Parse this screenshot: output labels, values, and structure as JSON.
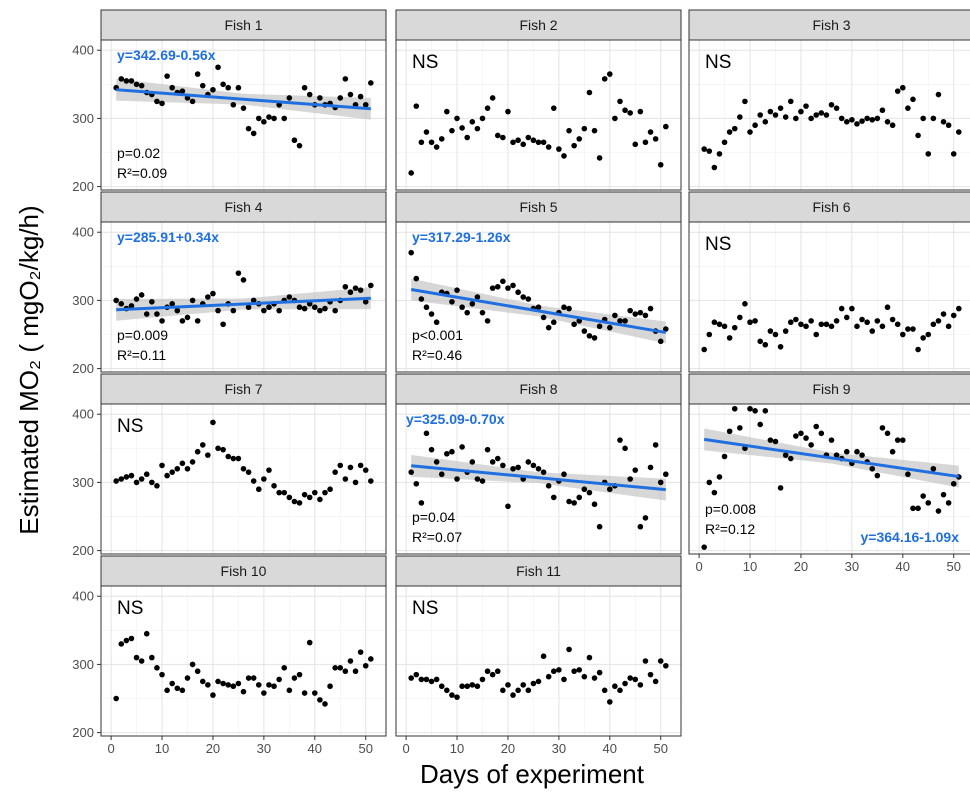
{
  "chart_data": {
    "type": "scatter",
    "xlabel": "Days of experiment",
    "ylabel": "Estimated MO₂ ( mgO₂/kg/h)",
    "xlim": [
      -1,
      53
    ],
    "ylim": [
      195,
      415
    ],
    "xticks": [
      0,
      10,
      20,
      30,
      40,
      50
    ],
    "yticks": [
      200,
      300,
      400
    ],
    "grid": true,
    "line_color": "#1f6fe0",
    "point_color": "#000000",
    "panels": [
      {
        "name": "Fish 1",
        "x": [
          1,
          2,
          3,
          4,
          5,
          6,
          7,
          8,
          9,
          10,
          11,
          12,
          13,
          14,
          15,
          16,
          17,
          18,
          19,
          20,
          21,
          22,
          23,
          24,
          25,
          26,
          27,
          28,
          29,
          30,
          31,
          32,
          33,
          34,
          35,
          36,
          37,
          38,
          39,
          40,
          41,
          42,
          43,
          44,
          45,
          46,
          47,
          48,
          49,
          50,
          51
        ],
        "y": [
          345,
          358,
          355,
          355,
          350,
          348,
          338,
          335,
          325,
          322,
          362,
          345,
          338,
          340,
          330,
          325,
          365,
          348,
          335,
          342,
          375,
          350,
          345,
          320,
          345,
          315,
          285,
          278,
          300,
          295,
          302,
          300,
          320,
          300,
          330,
          268,
          260,
          345,
          335,
          320,
          330,
          320,
          322,
          316,
          330,
          358,
          335,
          320,
          332,
          320,
          352
        ],
        "fit": {
          "intercept": 342.69,
          "slope": -0.56
        },
        "equation": "y=342.69-0.56x",
        "p": "p=0.02",
        "r2": "R²=0.09"
      },
      {
        "name": "Fish 2",
        "x": [
          1,
          2,
          3,
          4,
          5,
          6,
          7,
          8,
          9,
          10,
          11,
          12,
          13,
          14,
          15,
          16,
          17,
          18,
          19,
          20,
          21,
          22,
          23,
          24,
          25,
          26,
          27,
          28,
          29,
          30,
          31,
          32,
          33,
          34,
          35,
          36,
          37,
          38,
          39,
          40,
          41,
          42,
          43,
          44,
          45,
          46,
          47,
          48,
          49,
          50,
          51
        ],
        "y": [
          220,
          318,
          265,
          280,
          265,
          258,
          270,
          310,
          282,
          300,
          286,
          272,
          295,
          285,
          300,
          315,
          330,
          275,
          272,
          310,
          265,
          268,
          262,
          272,
          268,
          265,
          265,
          258,
          315,
          255,
          245,
          282,
          260,
          270,
          285,
          338,
          282,
          242,
          358,
          365,
          300,
          325,
          312,
          308,
          262,
          310,
          265,
          280,
          270,
          232,
          288
        ],
        "ns": "NS"
      },
      {
        "name": "Fish 3",
        "x": [
          1,
          2,
          3,
          4,
          5,
          6,
          7,
          8,
          9,
          10,
          11,
          12,
          13,
          14,
          15,
          16,
          17,
          18,
          19,
          20,
          21,
          22,
          23,
          24,
          25,
          26,
          27,
          28,
          29,
          30,
          31,
          32,
          33,
          34,
          35,
          36,
          37,
          38,
          39,
          40,
          41,
          42,
          43,
          44,
          45,
          46,
          47,
          48,
          49,
          50,
          51
        ],
        "y": [
          255,
          252,
          228,
          248,
          265,
          280,
          285,
          302,
          325,
          280,
          290,
          305,
          295,
          310,
          305,
          315,
          302,
          325,
          300,
          310,
          318,
          300,
          305,
          308,
          305,
          320,
          315,
          300,
          295,
          298,
          292,
          296,
          300,
          298,
          300,
          312,
          295,
          290,
          340,
          345,
          315,
          328,
          275,
          300,
          248,
          300,
          335,
          295,
          290,
          248,
          280
        ],
        "ns": "NS"
      },
      {
        "name": "Fish 4",
        "x": [
          1,
          2,
          3,
          4,
          5,
          6,
          7,
          8,
          9,
          10,
          11,
          12,
          13,
          14,
          15,
          16,
          17,
          18,
          19,
          20,
          21,
          22,
          23,
          24,
          25,
          26,
          27,
          28,
          29,
          30,
          31,
          32,
          33,
          34,
          35,
          36,
          37,
          38,
          39,
          40,
          41,
          42,
          43,
          44,
          45,
          46,
          47,
          48,
          49,
          50,
          51
        ],
        "y": [
          300,
          295,
          288,
          292,
          302,
          308,
          280,
          298,
          280,
          270,
          290,
          295,
          285,
          270,
          275,
          300,
          270,
          295,
          305,
          310,
          285,
          265,
          295,
          285,
          340,
          330,
          290,
          300,
          295,
          285,
          290,
          295,
          285,
          300,
          305,
          300,
          290,
          288,
          295,
          290,
          285,
          288,
          298,
          285,
          300,
          320,
          312,
          318,
          315,
          298,
          322
        ],
        "fit": {
          "intercept": 285.91,
          "slope": 0.34
        },
        "equation": "y=285.91+0.34x",
        "p": "p=0.009",
        "r2": "R²=0.11"
      },
      {
        "name": "Fish 5",
        "x": [
          1,
          2,
          3,
          4,
          5,
          6,
          7,
          8,
          9,
          10,
          11,
          12,
          13,
          14,
          15,
          16,
          17,
          18,
          19,
          20,
          21,
          22,
          23,
          24,
          25,
          26,
          27,
          28,
          29,
          30,
          31,
          32,
          33,
          34,
          35,
          36,
          37,
          38,
          39,
          40,
          41,
          42,
          43,
          44,
          45,
          46,
          47,
          48,
          49,
          50,
          51
        ],
        "y": [
          370,
          332,
          302,
          290,
          280,
          268,
          312,
          310,
          298,
          315,
          290,
          282,
          295,
          305,
          282,
          270,
          318,
          320,
          328,
          318,
          322,
          312,
          305,
          302,
          288,
          290,
          275,
          260,
          268,
          282,
          290,
          288,
          265,
          270,
          255,
          248,
          245,
          262,
          272,
          260,
          278,
          270,
          270,
          285,
          280,
          282,
          278,
          288,
          255,
          240,
          258
        ],
        "fit": {
          "intercept": 317.29,
          "slope": -1.26
        },
        "equation": "y=317.29-1.26x",
        "p": "p<0.001",
        "r2": "R²=0.46"
      },
      {
        "name": "Fish 6",
        "x": [
          1,
          2,
          3,
          4,
          5,
          6,
          7,
          8,
          9,
          10,
          11,
          12,
          13,
          14,
          15,
          16,
          17,
          18,
          19,
          20,
          21,
          22,
          23,
          24,
          25,
          26,
          27,
          28,
          29,
          30,
          31,
          32,
          33,
          34,
          35,
          36,
          37,
          38,
          39,
          40,
          41,
          42,
          43,
          44,
          45,
          46,
          47,
          48,
          49,
          50,
          51
        ],
        "y": [
          228,
          250,
          268,
          265,
          262,
          245,
          260,
          275,
          295,
          268,
          270,
          240,
          235,
          255,
          250,
          232,
          255,
          268,
          272,
          265,
          262,
          270,
          250,
          265,
          265,
          262,
          270,
          288,
          275,
          288,
          262,
          272,
          268,
          255,
          270,
          262,
          290,
          272,
          265,
          250,
          258,
          258,
          228,
          245,
          250,
          265,
          270,
          280,
          262,
          278,
          288
        ],
        "ns": "NS"
      },
      {
        "name": "Fish 7",
        "x": [
          1,
          2,
          3,
          4,
          5,
          6,
          7,
          8,
          9,
          10,
          11,
          12,
          13,
          14,
          15,
          16,
          17,
          18,
          19,
          20,
          21,
          22,
          23,
          24,
          25,
          26,
          27,
          28,
          29,
          30,
          31,
          32,
          33,
          34,
          35,
          36,
          37,
          38,
          39,
          40,
          41,
          42,
          43,
          44,
          45,
          46,
          47,
          48,
          49,
          50,
          51
        ],
        "y": [
          302,
          305,
          308,
          310,
          300,
          305,
          312,
          300,
          295,
          325,
          310,
          315,
          320,
          328,
          320,
          330,
          345,
          355,
          340,
          388,
          350,
          348,
          338,
          335,
          335,
          320,
          315,
          302,
          290,
          305,
          318,
          295,
          285,
          285,
          278,
          272,
          270,
          282,
          278,
          285,
          275,
          285,
          290,
          315,
          325,
          305,
          322,
          300,
          325,
          318,
          302
        ],
        "ns": "NS"
      },
      {
        "name": "Fish 8",
        "x": [
          1,
          2,
          3,
          4,
          5,
          6,
          7,
          8,
          9,
          10,
          11,
          12,
          13,
          14,
          15,
          16,
          17,
          18,
          19,
          20,
          21,
          22,
          23,
          24,
          25,
          26,
          27,
          28,
          29,
          30,
          31,
          32,
          33,
          34,
          35,
          36,
          37,
          38,
          39,
          40,
          41,
          42,
          43,
          44,
          45,
          46,
          47,
          48,
          49,
          50,
          51
        ],
        "y": [
          315,
          298,
          270,
          372,
          348,
          330,
          312,
          342,
          345,
          305,
          352,
          315,
          330,
          305,
          302,
          348,
          330,
          335,
          325,
          265,
          320,
          322,
          305,
          330,
          325,
          320,
          315,
          295,
          278,
          302,
          312,
          272,
          270,
          278,
          290,
          285,
          268,
          235,
          300,
          290,
          295,
          362,
          350,
          305,
          318,
          235,
          248,
          322,
          355,
          300,
          312
        ],
        "fit": {
          "intercept": 325.09,
          "slope": -0.7
        },
        "equation": "y=325.09-0.70x",
        "p": "p=0.04",
        "r2": "R²=0.07"
      },
      {
        "name": "Fish 9",
        "x": [
          1,
          2,
          3,
          4,
          5,
          6,
          7,
          8,
          9,
          10,
          11,
          12,
          13,
          14,
          15,
          16,
          17,
          18,
          19,
          20,
          21,
          22,
          23,
          24,
          25,
          26,
          27,
          28,
          29,
          30,
          31,
          32,
          33,
          34,
          35,
          36,
          37,
          38,
          39,
          40,
          41,
          42,
          43,
          44,
          45,
          46,
          47,
          48,
          49,
          50,
          51
        ],
        "y": [
          205,
          300,
          285,
          308,
          338,
          375,
          408,
          380,
          350,
          408,
          405,
          385,
          405,
          362,
          360,
          292,
          340,
          335,
          368,
          372,
          365,
          355,
          382,
          372,
          340,
          362,
          340,
          335,
          345,
          328,
          345,
          340,
          330,
          320,
          310,
          380,
          372,
          345,
          362,
          362,
          312,
          262,
          262,
          280,
          270,
          320,
          258,
          282,
          270,
          298,
          308
        ],
        "fit": {
          "intercept": 364.16,
          "slope": -1.09
        },
        "equation": "y=364.16-1.09x",
        "p": "p=0.008",
        "r2": "R²=0.12"
      },
      {
        "name": "Fish 10",
        "x": [
          1,
          2,
          3,
          4,
          5,
          6,
          7,
          8,
          9,
          10,
          11,
          12,
          13,
          14,
          15,
          16,
          17,
          18,
          19,
          20,
          21,
          22,
          23,
          24,
          25,
          26,
          27,
          28,
          29,
          30,
          31,
          32,
          33,
          34,
          35,
          36,
          37,
          38,
          39,
          40,
          41,
          42,
          43,
          44,
          45,
          46,
          47,
          48,
          49,
          50,
          51
        ],
        "y": [
          250,
          330,
          335,
          338,
          310,
          305,
          345,
          310,
          295,
          285,
          262,
          272,
          265,
          262,
          280,
          300,
          290,
          275,
          270,
          255,
          275,
          272,
          270,
          268,
          272,
          260,
          280,
          280,
          270,
          258,
          270,
          268,
          278,
          295,
          262,
          280,
          285,
          258,
          332,
          258,
          248,
          242,
          268,
          295,
          295,
          290,
          305,
          290,
          318,
          298,
          308
        ],
        "ns": "NS"
      },
      {
        "name": "Fish 11",
        "x": [
          1,
          2,
          3,
          4,
          5,
          6,
          7,
          8,
          9,
          10,
          11,
          12,
          13,
          14,
          15,
          16,
          17,
          18,
          19,
          20,
          21,
          22,
          23,
          24,
          25,
          26,
          27,
          28,
          29,
          30,
          31,
          32,
          33,
          34,
          35,
          36,
          37,
          38,
          39,
          40,
          41,
          42,
          43,
          44,
          45,
          46,
          47,
          48,
          49,
          50,
          51
        ],
        "y": [
          280,
          285,
          278,
          278,
          275,
          278,
          268,
          262,
          255,
          252,
          268,
          268,
          270,
          268,
          278,
          290,
          285,
          290,
          262,
          270,
          255,
          262,
          270,
          262,
          272,
          275,
          312,
          282,
          290,
          292,
          278,
          322,
          290,
          292,
          282,
          310,
          280,
          288,
          262,
          245,
          268,
          262,
          272,
          280,
          278,
          270,
          305,
          285,
          275,
          305,
          298
        ],
        "ns": "NS"
      }
    ]
  }
}
